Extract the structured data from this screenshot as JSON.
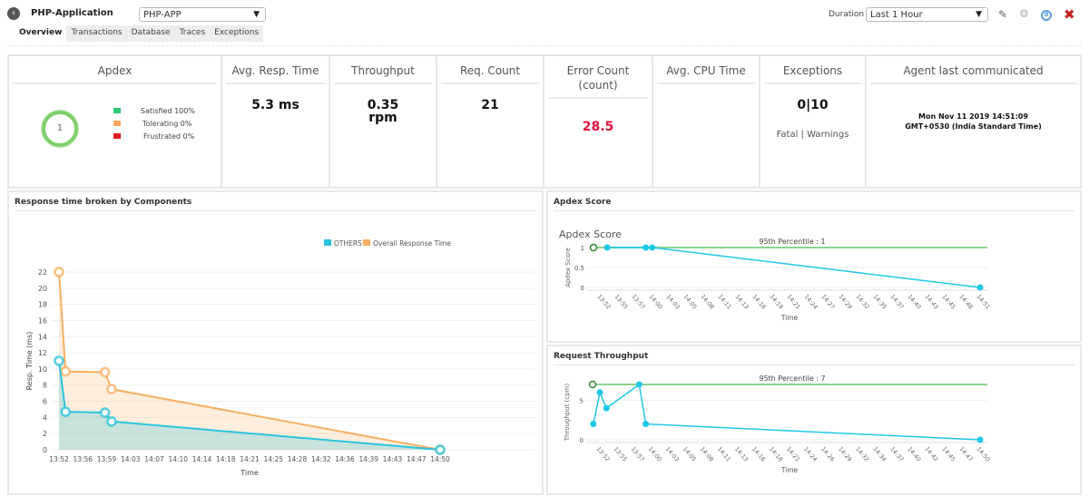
{
  "header": {
    "title": "PHP-Application",
    "app_select": "PHP-APP",
    "duration_label": "Duration :",
    "duration_value": "Last 1 Hour"
  },
  "tabs": [
    "Overview",
    "Transactions",
    "Database",
    "Traces",
    "Exceptions"
  ],
  "metrics": {
    "apdex": {
      "label": "Apdex",
      "score": "1",
      "legend": [
        {
          "label": "Satisfied 100%",
          "color": "#2ecc71"
        },
        {
          "label": "Tolerating 0%",
          "color": "#f7a85c"
        },
        {
          "label": "Frustrated 0%",
          "color": "#e02020"
        }
      ]
    },
    "avg_resp": {
      "label": "Avg. Resp. Time",
      "value": "5.3 ms"
    },
    "throughput": {
      "label": "Throughput",
      "value": "0.35",
      "unit": "rpm"
    },
    "req_count": {
      "label": "Req. Count",
      "value": "21"
    },
    "error_count": {
      "label": "Error Count",
      "sub": "(count)",
      "value": "28.5",
      "color": "#e0103a"
    },
    "cpu": {
      "label": "Avg. CPU Time"
    },
    "exceptions": {
      "label": "Exceptions",
      "value": "0|10",
      "sub": "Fatal | Warnings"
    },
    "agent": {
      "label": "Agent last communicated",
      "line1": "Mon Nov 11 2019 14:51:09",
      "line2": "GMT+0530 (India Standard Time)"
    }
  },
  "panels": {
    "response": "Response time broken by Components",
    "apdex": "Apdex Score",
    "throughput": "Request Throughput"
  },
  "chart_data": [
    {
      "type": "area",
      "title": "Response time broken by Components",
      "xlabel": "Time",
      "ylabel": "Resp. Time (ms)",
      "ylim": [
        0,
        22
      ],
      "yticks": [
        0,
        2,
        4,
        6,
        8,
        10,
        12,
        14,
        16,
        18,
        20,
        22
      ],
      "xticks": [
        "13:52",
        "13:56",
        "13:59",
        "14:03",
        "14:07",
        "14:10",
        "14:14",
        "14:18",
        "14:21",
        "14:25",
        "14:28",
        "14:32",
        "14:36",
        "14:39",
        "14:43",
        "14:47",
        "14:50"
      ],
      "x": [
        "13:52",
        "13:53",
        "13:59",
        "14:00",
        "14:50"
      ],
      "legend": "top-right",
      "series": [
        {
          "name": "OTHERS",
          "color": "#2bc4dc",
          "values": [
            11,
            4.7,
            4.6,
            3.5,
            0
          ]
        },
        {
          "name": "Overall Response Time",
          "color": "#f7b064",
          "values": [
            22,
            9.7,
            9.6,
            7.5,
            0
          ]
        }
      ]
    },
    {
      "type": "line",
      "title": "Apdex Score",
      "xlabel": "Time",
      "ylabel": "Apdex Score",
      "ylim": [
        0,
        1
      ],
      "yticks": [
        "0",
        "0.5",
        "1"
      ],
      "xticks": [
        "13:52",
        "13:55",
        "13:57",
        "14:00",
        "14:03",
        "14:05",
        "14:08",
        "14:11",
        "14:13",
        "14:16",
        "14:19",
        "14:21",
        "14:24",
        "14:27",
        "14:29",
        "14:32",
        "14:35",
        "14:37",
        "14:40",
        "14:43",
        "14:45",
        "14:48",
        "14:51"
      ],
      "x": [
        "13:53",
        "13:59",
        "14:00",
        "14:51"
      ],
      "series": [
        {
          "color": "#1ec8e6",
          "values": [
            1,
            1,
            1,
            0
          ]
        }
      ],
      "reference": {
        "label": "95th Percentile : 1",
        "value": 1,
        "color": "#8fd18f"
      }
    },
    {
      "type": "line",
      "title": "Request Throughput",
      "xlabel": "Time",
      "ylabel": "Throughput (cpm)",
      "ylim": [
        0,
        7
      ],
      "yticks": [
        "0",
        "5"
      ],
      "xticks": [
        "13:52",
        "13:55",
        "13:57",
        "14:00",
        "14:03",
        "14:05",
        "14:08",
        "14:11",
        "14:13",
        "14:16",
        "14:18",
        "14:21",
        "14:24",
        "14:26",
        "14:29",
        "14:32",
        "14:34",
        "14:37",
        "14:40",
        "14:42",
        "14:45",
        "14:47",
        "14:50"
      ],
      "x": [
        "13:51",
        "13:52",
        "13:53",
        "13:58",
        "13:59",
        "14:50"
      ],
      "series": [
        {
          "color": "#1ec8e6",
          "values": [
            2,
            6,
            4,
            7,
            2,
            0
          ]
        }
      ],
      "reference": {
        "label": "95th Percentile : 7",
        "value": 7,
        "color": "#8fd18f"
      }
    }
  ]
}
